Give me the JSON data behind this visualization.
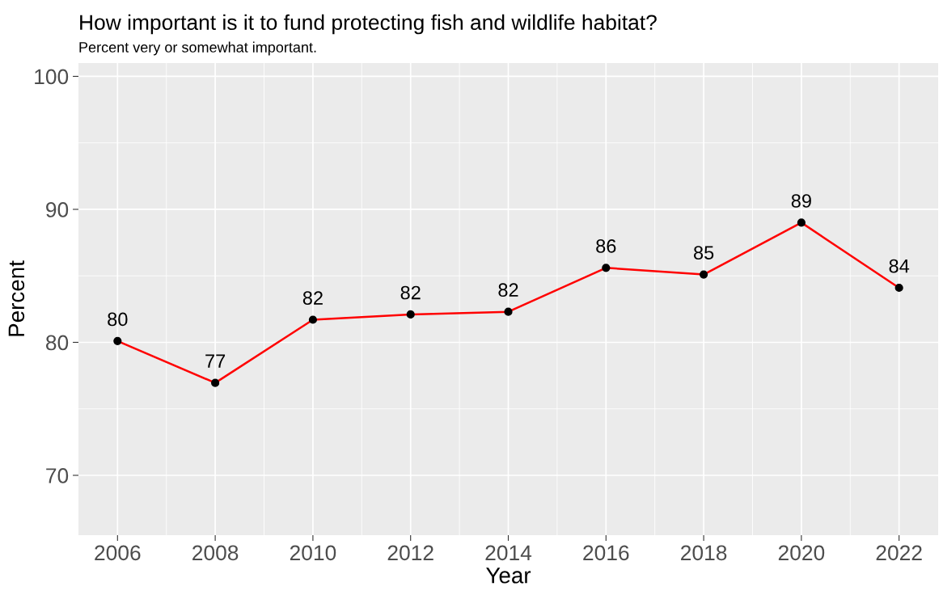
{
  "chart_data": {
    "type": "line",
    "title": "How important is it to fund protecting fish and wildlife habitat?",
    "subtitle": "Percent very or somewhat important.",
    "xlabel": "Year",
    "ylabel": "Percent",
    "x": [
      2006,
      2008,
      2010,
      2012,
      2014,
      2016,
      2018,
      2020,
      2022
    ],
    "series": [
      {
        "color": "#ff0000",
        "values": [
          80.1,
          76.95,
          81.7,
          82.1,
          82.3,
          85.6,
          85.1,
          89.0,
          84.1
        ],
        "value_labels": [
          "80",
          "77",
          "82",
          "82",
          "82",
          "86",
          "85",
          "89",
          "84"
        ]
      }
    ],
    "marker": "circle",
    "line_style": "solid",
    "grid": true,
    "xlim": [
      2005.2,
      2022.8
    ],
    "ylim": [
      65.5,
      101
    ],
    "xticks": [
      2006,
      2008,
      2010,
      2012,
      2014,
      2016,
      2018,
      2020,
      2022
    ],
    "yticks": [
      70,
      80,
      90,
      100
    ]
  }
}
